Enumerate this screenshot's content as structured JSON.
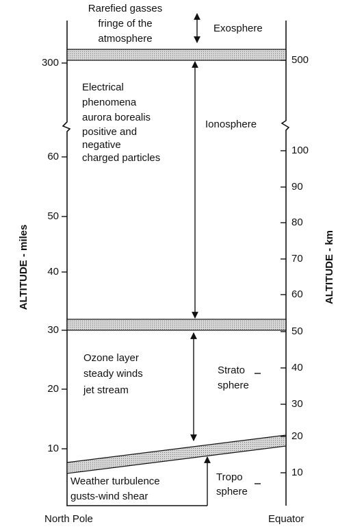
{
  "diagram": {
    "left_axis": {
      "title": "ALTITUDE - miles",
      "ticks": [
        "300",
        "60",
        "50",
        "40",
        "30",
        "20",
        "10"
      ]
    },
    "right_axis": {
      "title": "ALTITUDE - km",
      "ticks": [
        "500",
        "100",
        "90",
        "80",
        "70",
        "60",
        "50",
        "40",
        "30",
        "20",
        "10"
      ]
    },
    "layers": [
      {
        "name": "Exosphere",
        "description": [
          "Rarefied gasses",
          "fringe of the",
          "atmosphere"
        ]
      },
      {
        "name": "Ionosphere",
        "description": [
          "Electrical",
          "phenomena",
          "aurora borealis",
          "positive and",
          "negative",
          "charged particles"
        ]
      },
      {
        "name": [
          "Strato",
          "sphere"
        ],
        "description": [
          "Ozone layer",
          "steady winds",
          "jet stream"
        ]
      },
      {
        "name": [
          "Tropo",
          "sphere"
        ],
        "description": [
          "Weather turbulence",
          "gusts-wind shear"
        ]
      }
    ],
    "bottom_labels": [
      "North Pole",
      "Equator"
    ]
  }
}
